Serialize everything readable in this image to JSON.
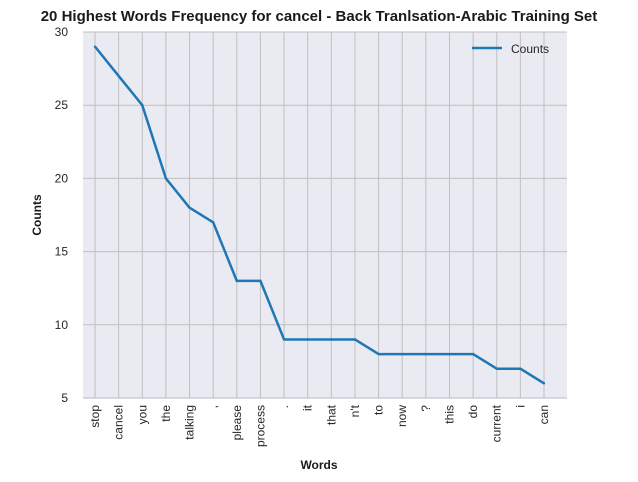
{
  "chart_data": {
    "type": "line",
    "title": "20 Highest Words Frequency for cancel - Back Tranlsation-Arabic Training Set",
    "xlabel": "Words",
    "ylabel": "Counts",
    "categories": [
      "stop",
      "cancel",
      "you",
      "the",
      "talking",
      ",",
      "please",
      "process",
      ".",
      "it",
      "that",
      "n't",
      "to",
      "now",
      "?",
      "this",
      "do",
      "current",
      "i",
      "can"
    ],
    "series": [
      {
        "name": "Counts",
        "values": [
          29,
          27,
          25,
          20,
          18,
          17,
          13,
          13,
          9,
          9,
          9,
          9,
          8,
          8,
          8,
          8,
          8,
          7,
          7,
          6
        ]
      }
    ],
    "yticks": [
      "5",
      "10",
      "15",
      "20",
      "25",
      "30"
    ],
    "ylim": [
      5,
      30
    ],
    "grid": true,
    "legend_position": "top-right",
    "colors": {
      "line": "#1f77b4",
      "background": "#eaeaf2",
      "grid": "#c0c0c0"
    }
  }
}
